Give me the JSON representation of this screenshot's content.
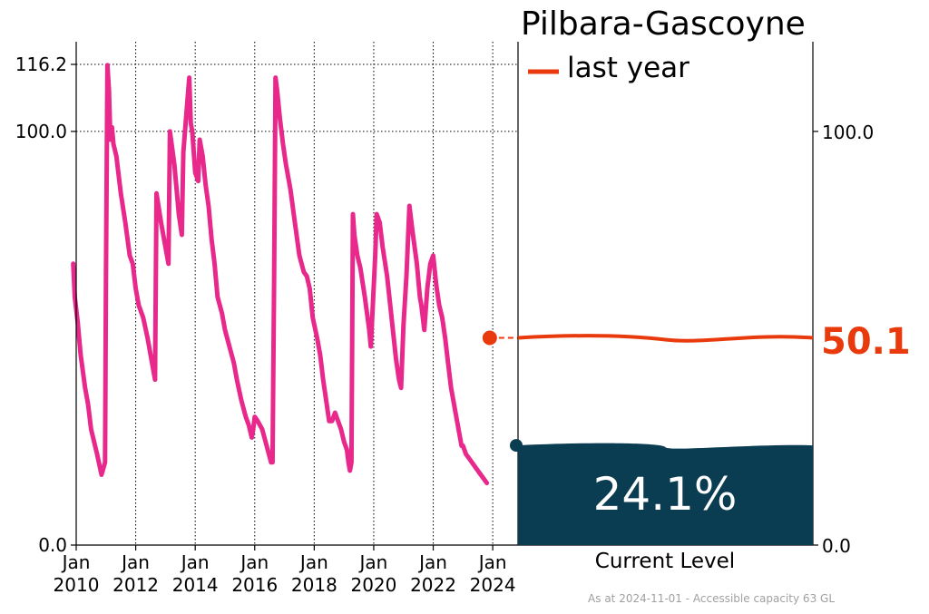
{
  "chart_data": {
    "type": "line",
    "title": "Pilbara-Gascoyne",
    "legend": {
      "label": "last year",
      "placement": "top-right"
    },
    "colors": {
      "series": "#e8298b",
      "last_year": "#e83a0c",
      "current": "#0b3d52",
      "grid": "#000000"
    },
    "xlim": [
      2010.0,
      2024.85
    ],
    "ylim": [
      0,
      116.2
    ],
    "y_ticks": [
      {
        "value": 0.0,
        "label": "0.0"
      },
      {
        "value": 100.0,
        "label": "100.0"
      },
      {
        "value": 116.2,
        "label": "116.2"
      }
    ],
    "x_ticks": [
      {
        "value": 2010,
        "line1": "Jan",
        "line2": "2010"
      },
      {
        "value": 2012,
        "line1": "Jan",
        "line2": "2012"
      },
      {
        "value": 2014,
        "line1": "Jan",
        "line2": "2014"
      },
      {
        "value": 2016,
        "line1": "Jan",
        "line2": "2016"
      },
      {
        "value": 2018,
        "line1": "Jan",
        "line2": "2018"
      },
      {
        "value": 2020,
        "line1": "Jan",
        "line2": "2020"
      },
      {
        "value": 2022,
        "line1": "Jan",
        "line2": "2022"
      },
      {
        "value": 2024,
        "line1": "Jan",
        "line2": "2024"
      }
    ],
    "right_ticks": [
      {
        "value": 0.0,
        "label": "0.0"
      },
      {
        "value": 100.0,
        "label": "100.0"
      }
    ],
    "series": [
      {
        "points": [
          [
            2009.9,
            68
          ],
          [
            2009.95,
            60
          ],
          [
            2010.05,
            54
          ],
          [
            2010.15,
            46
          ],
          [
            2010.3,
            38
          ],
          [
            2010.4,
            34
          ],
          [
            2010.5,
            28
          ],
          [
            2010.7,
            22
          ],
          [
            2010.85,
            17
          ],
          [
            2010.97,
            20
          ],
          [
            2011.0,
            65
          ],
          [
            2011.05,
            116
          ],
          [
            2011.1,
            110
          ],
          [
            2011.15,
            98
          ],
          [
            2011.2,
            101
          ],
          [
            2011.25,
            97
          ],
          [
            2011.35,
            94
          ],
          [
            2011.5,
            85
          ],
          [
            2011.65,
            78
          ],
          [
            2011.8,
            70
          ],
          [
            2011.9,
            68
          ],
          [
            2012.0,
            62
          ],
          [
            2012.1,
            58
          ],
          [
            2012.25,
            55
          ],
          [
            2012.4,
            50
          ],
          [
            2012.55,
            44
          ],
          [
            2012.65,
            40
          ],
          [
            2012.7,
            85
          ],
          [
            2012.85,
            78
          ],
          [
            2013.0,
            72
          ],
          [
            2013.1,
            68
          ],
          [
            2013.15,
            100
          ],
          [
            2013.3,
            92
          ],
          [
            2013.45,
            80
          ],
          [
            2013.55,
            75
          ],
          [
            2013.6,
            95
          ],
          [
            2013.8,
            113
          ],
          [
            2013.85,
            102
          ],
          [
            2013.9,
            100
          ],
          [
            2014.0,
            90
          ],
          [
            2014.1,
            88
          ],
          [
            2014.15,
            98
          ],
          [
            2014.25,
            94
          ],
          [
            2014.35,
            87
          ],
          [
            2014.45,
            82
          ],
          [
            2014.55,
            74
          ],
          [
            2014.65,
            68
          ],
          [
            2014.75,
            60
          ],
          [
            2014.9,
            56
          ],
          [
            2015.0,
            52
          ],
          [
            2015.15,
            48
          ],
          [
            2015.3,
            44
          ],
          [
            2015.4,
            40
          ],
          [
            2015.55,
            35
          ],
          [
            2015.7,
            31
          ],
          [
            2015.8,
            29
          ],
          [
            2015.9,
            26
          ],
          [
            2015.95,
            28
          ],
          [
            2016.0,
            31
          ],
          [
            2016.1,
            30
          ],
          [
            2016.25,
            28
          ],
          [
            2016.4,
            24
          ],
          [
            2016.55,
            20
          ],
          [
            2016.6,
            20
          ],
          [
            2016.65,
            63
          ],
          [
            2016.7,
            113
          ],
          [
            2016.75,
            110
          ],
          [
            2016.85,
            103
          ],
          [
            2016.95,
            97
          ],
          [
            2017.05,
            92
          ],
          [
            2017.2,
            86
          ],
          [
            2017.35,
            78
          ],
          [
            2017.5,
            70
          ],
          [
            2017.65,
            66
          ],
          [
            2017.75,
            65
          ],
          [
            2017.85,
            62
          ],
          [
            2017.95,
            55
          ],
          [
            2018.1,
            50
          ],
          [
            2018.2,
            46
          ],
          [
            2018.3,
            40
          ],
          [
            2018.4,
            35
          ],
          [
            2018.5,
            30
          ],
          [
            2018.6,
            30
          ],
          [
            2018.7,
            32
          ],
          [
            2018.8,
            30
          ],
          [
            2018.9,
            28
          ],
          [
            2019.0,
            25
          ],
          [
            2019.1,
            23
          ],
          [
            2019.15,
            20
          ],
          [
            2019.2,
            18
          ],
          [
            2019.25,
            20
          ],
          [
            2019.3,
            80
          ],
          [
            2019.35,
            75
          ],
          [
            2019.45,
            70
          ],
          [
            2019.55,
            67
          ],
          [
            2019.7,
            60
          ],
          [
            2019.85,
            52
          ],
          [
            2019.9,
            48
          ],
          [
            2019.95,
            55
          ],
          [
            2020.05,
            70
          ],
          [
            2020.1,
            80
          ],
          [
            2020.2,
            78
          ],
          [
            2020.3,
            72
          ],
          [
            2020.45,
            65
          ],
          [
            2020.6,
            55
          ],
          [
            2020.75,
            45
          ],
          [
            2020.85,
            40
          ],
          [
            2020.92,
            38
          ],
          [
            2021.0,
            53
          ],
          [
            2021.1,
            65
          ],
          [
            2021.2,
            82
          ],
          [
            2021.3,
            76
          ],
          [
            2021.45,
            68
          ],
          [
            2021.55,
            60
          ],
          [
            2021.6,
            58
          ],
          [
            2021.7,
            52
          ],
          [
            2021.8,
            62
          ],
          [
            2021.9,
            68
          ],
          [
            2022.0,
            70
          ],
          [
            2022.1,
            63
          ],
          [
            2022.2,
            58
          ],
          [
            2022.3,
            55
          ],
          [
            2022.4,
            50
          ],
          [
            2022.5,
            44
          ],
          [
            2022.6,
            38
          ],
          [
            2022.7,
            34
          ],
          [
            2022.75,
            32
          ],
          [
            2022.8,
            30
          ],
          [
            2022.85,
            28
          ],
          [
            2022.9,
            26
          ],
          [
            2022.95,
            24
          ],
          [
            2023.0,
            24
          ],
          [
            2023.1,
            22
          ],
          [
            2023.2,
            21
          ],
          [
            2023.3,
            20
          ],
          [
            2023.4,
            19
          ],
          [
            2023.5,
            18
          ],
          [
            2023.6,
            17
          ],
          [
            2023.7,
            16
          ],
          [
            2023.8,
            15
          ]
        ]
      }
    ],
    "last_year_value": 50.1,
    "last_year_label": "50.1",
    "current_value": 24.1,
    "current_label": "24.1%",
    "current_axis_label": "Current Level",
    "footnote": "As at 2024-11-01 - Accessible capacity 63 GL"
  }
}
